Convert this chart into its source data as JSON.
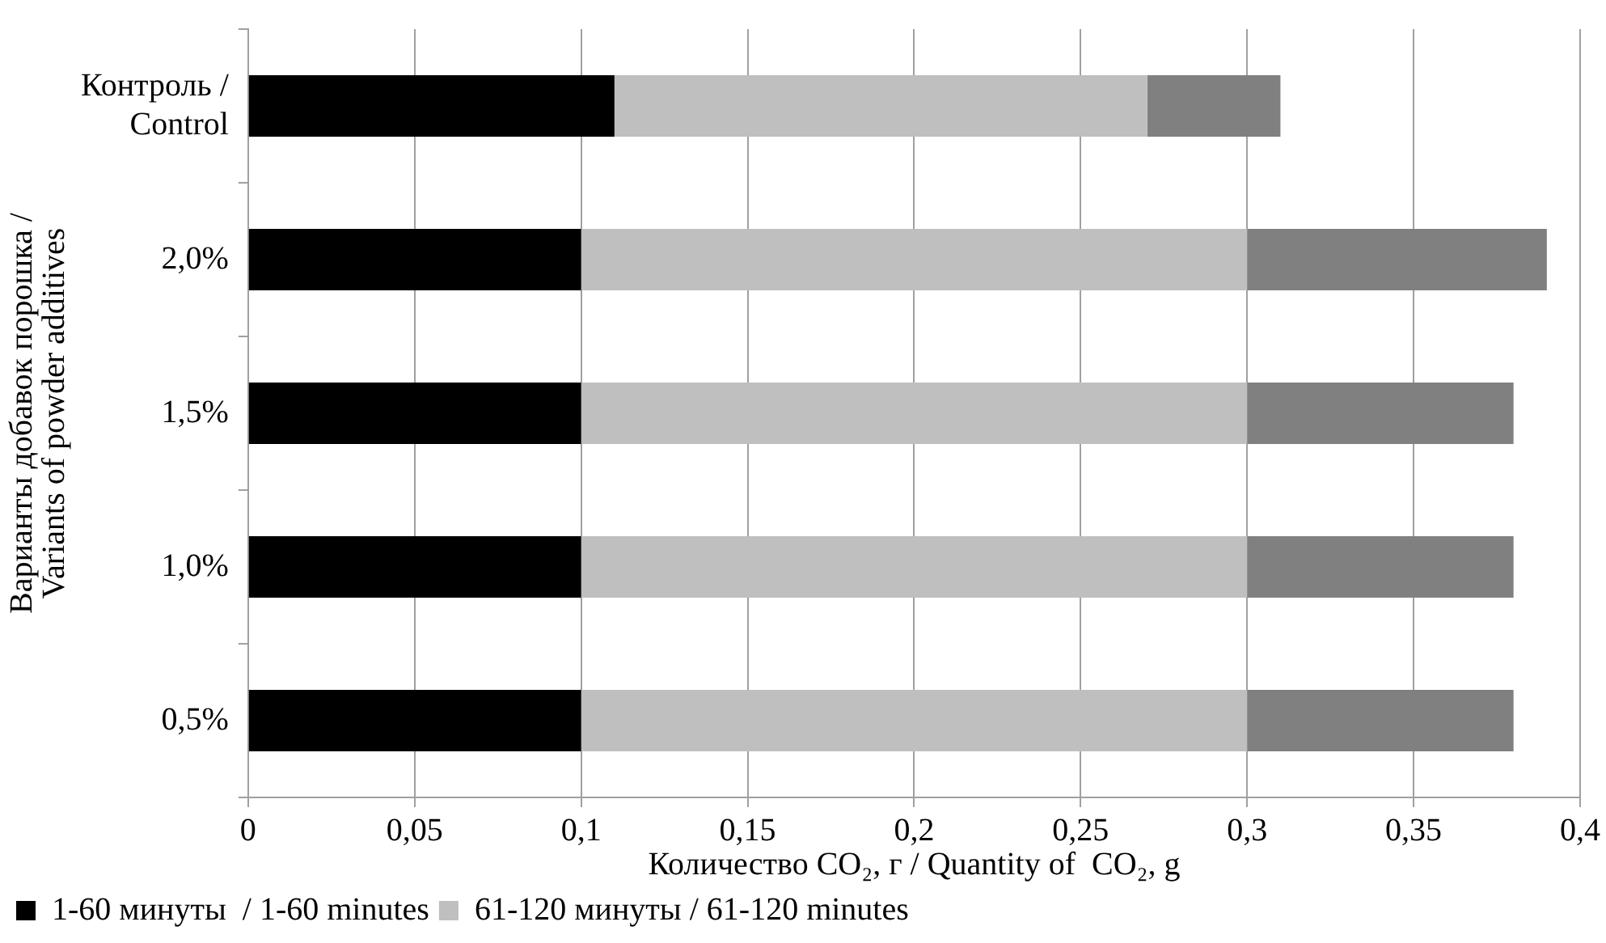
{
  "chart_data": {
    "type": "bar",
    "orientation": "horizontal",
    "stacked": true,
    "categories": [
      "Контроль / Control",
      "2,0%",
      "1,5%",
      "1,0%",
      "0,5%"
    ],
    "series": [
      {
        "name": "1-60 минуты  / 1-60 minutes",
        "color": "#000000",
        "values": [
          0.11,
          0.1,
          0.1,
          0.1,
          0.1
        ]
      },
      {
        "name": "61-120 минуты / 61-120 minutes",
        "color": "#bfbfbf",
        "values": [
          0.16,
          0.2,
          0.2,
          0.2,
          0.2
        ]
      },
      {
        "color": "#808080",
        "values": [
          0.04,
          0.09,
          0.08,
          0.08,
          0.08
        ]
      }
    ],
    "xlim": [
      0,
      0.4
    ],
    "xticks": [
      0,
      {
        "value": 0.05,
        "label": "0,05"
      },
      {
        "value": 0.1,
        "label": "0,1"
      },
      {
        "value": 0.15,
        "label": "0,15"
      },
      {
        "value": 0.2,
        "label": "0,2"
      },
      {
        "value": 0.25,
        "label": "0,25"
      },
      {
        "value": 0.3,
        "label": "0,3"
      },
      {
        "value": 0.35,
        "label": "0,35"
      },
      {
        "value": 0.4,
        "label": "0,4"
      }
    ],
    "xlabel": "Количество CO₂, г / Quantity of  CO₂, g",
    "ylabel": "Варианты добавок порошка / Variants of powder additives",
    "grid": "x",
    "legend": "bottom"
  }
}
